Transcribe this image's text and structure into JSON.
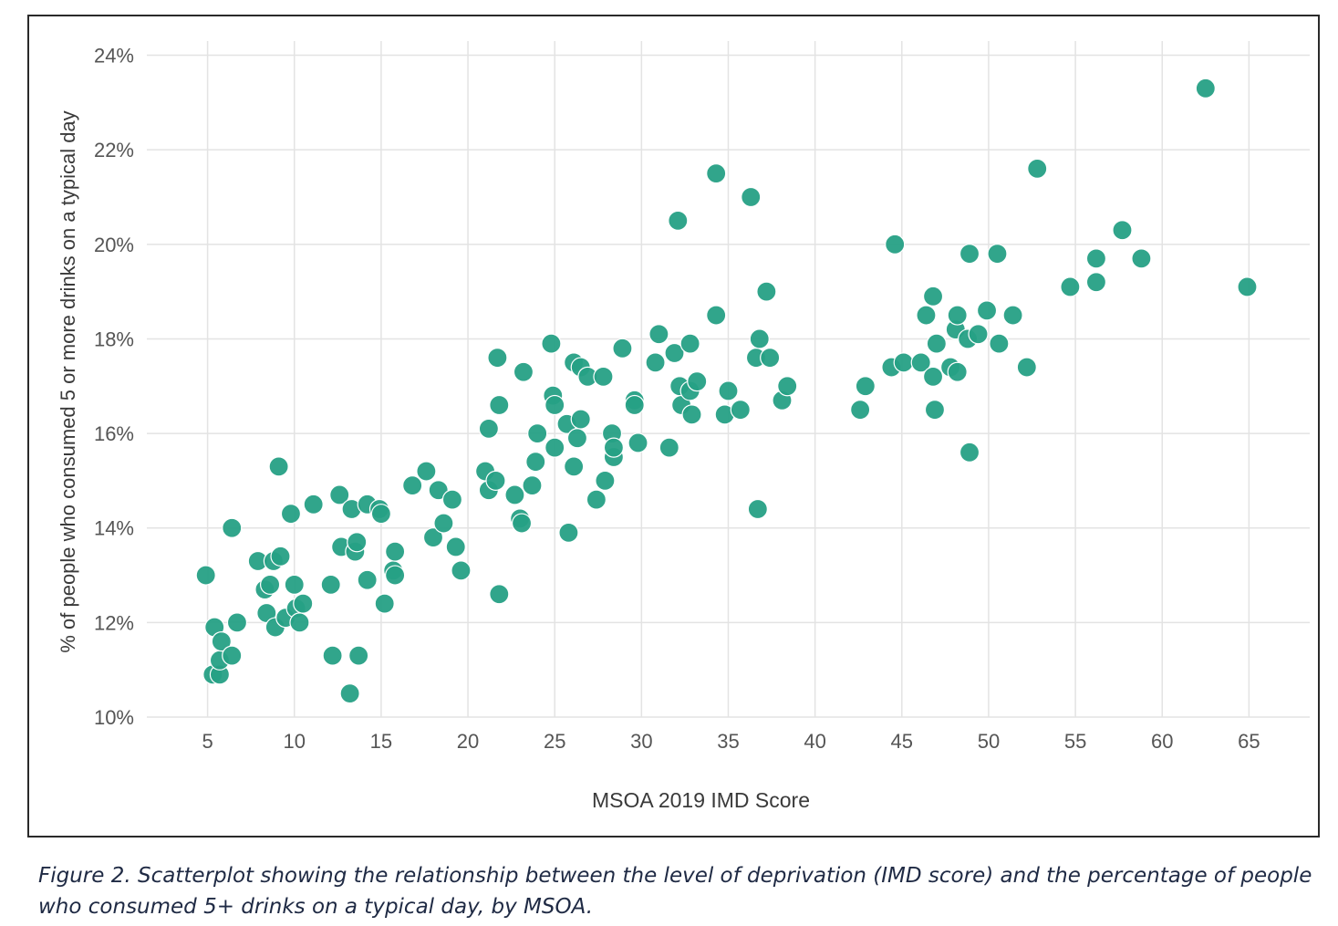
{
  "caption": "Figure 2. Scatterplot showing the relationship between the level of deprivation (IMD score) and the percentage of people who consumed 5+ drinks on a typical day, by MSOA.",
  "chart_data": {
    "type": "scatter",
    "title": "",
    "xlabel": "MSOA 2019 IMD Score",
    "ylabel": "% of people who consumed 5 or more drinks on a typical day",
    "xlim": [
      1.5,
      68.5
    ],
    "ylim": [
      10,
      24.3
    ],
    "x_ticks": [
      5,
      10,
      15,
      20,
      25,
      30,
      35,
      40,
      45,
      50,
      55,
      60,
      65
    ],
    "y_ticks": [
      10,
      12,
      14,
      16,
      18,
      20,
      22,
      24
    ],
    "y_tick_labels": [
      "10%",
      "12%",
      "14%",
      "16%",
      "18%",
      "20%",
      "22%",
      "24%"
    ],
    "grid": true,
    "legend": "none",
    "marker_color": "#26A085",
    "points": [
      {
        "x": 4.9,
        "y": 13.0
      },
      {
        "x": 5.3,
        "y": 10.9
      },
      {
        "x": 5.4,
        "y": 11.9
      },
      {
        "x": 5.7,
        "y": 10.9
      },
      {
        "x": 5.7,
        "y": 11.2
      },
      {
        "x": 5.8,
        "y": 11.6
      },
      {
        "x": 6.4,
        "y": 11.3
      },
      {
        "x": 6.4,
        "y": 14.0
      },
      {
        "x": 6.7,
        "y": 12.0
      },
      {
        "x": 7.9,
        "y": 13.3
      },
      {
        "x": 8.3,
        "y": 12.7
      },
      {
        "x": 8.4,
        "y": 12.2
      },
      {
        "x": 8.6,
        "y": 12.8
      },
      {
        "x": 8.8,
        "y": 13.3
      },
      {
        "x": 8.9,
        "y": 11.9
      },
      {
        "x": 9.1,
        "y": 15.3
      },
      {
        "x": 9.2,
        "y": 13.4
      },
      {
        "x": 9.5,
        "y": 12.1
      },
      {
        "x": 9.8,
        "y": 14.3
      },
      {
        "x": 10.0,
        "y": 12.8
      },
      {
        "x": 10.1,
        "y": 12.3
      },
      {
        "x": 10.3,
        "y": 12.0
      },
      {
        "x": 10.5,
        "y": 12.4
      },
      {
        "x": 11.1,
        "y": 14.5
      },
      {
        "x": 12.1,
        "y": 12.8
      },
      {
        "x": 12.2,
        "y": 11.3
      },
      {
        "x": 12.6,
        "y": 14.7
      },
      {
        "x": 12.7,
        "y": 13.6
      },
      {
        "x": 13.2,
        "y": 10.5
      },
      {
        "x": 13.3,
        "y": 14.4
      },
      {
        "x": 13.5,
        "y": 13.5
      },
      {
        "x": 13.6,
        "y": 13.7
      },
      {
        "x": 13.7,
        "y": 11.3
      },
      {
        "x": 14.2,
        "y": 12.9
      },
      {
        "x": 14.2,
        "y": 14.5
      },
      {
        "x": 14.9,
        "y": 14.4
      },
      {
        "x": 15.0,
        "y": 14.3
      },
      {
        "x": 15.2,
        "y": 12.4
      },
      {
        "x": 15.7,
        "y": 13.1
      },
      {
        "x": 15.8,
        "y": 13.5
      },
      {
        "x": 15.8,
        "y": 13.0
      },
      {
        "x": 16.8,
        "y": 14.9
      },
      {
        "x": 17.6,
        "y": 15.2
      },
      {
        "x": 18.0,
        "y": 13.8
      },
      {
        "x": 18.3,
        "y": 14.8
      },
      {
        "x": 18.6,
        "y": 14.1
      },
      {
        "x": 19.1,
        "y": 14.6
      },
      {
        "x": 19.3,
        "y": 13.6
      },
      {
        "x": 19.6,
        "y": 13.1
      },
      {
        "x": 21.0,
        "y": 15.2
      },
      {
        "x": 21.2,
        "y": 14.8
      },
      {
        "x": 21.2,
        "y": 16.1
      },
      {
        "x": 21.6,
        "y": 15.0
      },
      {
        "x": 21.7,
        "y": 17.6
      },
      {
        "x": 21.8,
        "y": 16.6
      },
      {
        "x": 21.8,
        "y": 12.6
      },
      {
        "x": 22.7,
        "y": 14.7
      },
      {
        "x": 23.0,
        "y": 14.2
      },
      {
        "x": 23.1,
        "y": 14.1
      },
      {
        "x": 23.2,
        "y": 17.3
      },
      {
        "x": 23.7,
        "y": 14.9
      },
      {
        "x": 23.9,
        "y": 15.4
      },
      {
        "x": 24.0,
        "y": 16.0
      },
      {
        "x": 24.8,
        "y": 17.9
      },
      {
        "x": 24.9,
        "y": 16.8
      },
      {
        "x": 25.0,
        "y": 15.7
      },
      {
        "x": 25.0,
        "y": 16.6
      },
      {
        "x": 25.7,
        "y": 16.2
      },
      {
        "x": 25.8,
        "y": 13.9
      },
      {
        "x": 26.1,
        "y": 15.3
      },
      {
        "x": 26.1,
        "y": 17.5
      },
      {
        "x": 26.3,
        "y": 15.9
      },
      {
        "x": 26.5,
        "y": 17.4
      },
      {
        "x": 26.5,
        "y": 16.3
      },
      {
        "x": 26.9,
        "y": 17.2
      },
      {
        "x": 27.4,
        "y": 14.6
      },
      {
        "x": 27.8,
        "y": 17.2
      },
      {
        "x": 27.9,
        "y": 15.0
      },
      {
        "x": 28.3,
        "y": 16.0
      },
      {
        "x": 28.4,
        "y": 15.5
      },
      {
        "x": 28.4,
        "y": 15.7
      },
      {
        "x": 28.9,
        "y": 17.8
      },
      {
        "x": 29.6,
        "y": 16.7
      },
      {
        "x": 29.6,
        "y": 16.6
      },
      {
        "x": 29.8,
        "y": 15.8
      },
      {
        "x": 30.8,
        "y": 17.5
      },
      {
        "x": 31.0,
        "y": 18.1
      },
      {
        "x": 31.6,
        "y": 15.7
      },
      {
        "x": 31.9,
        "y": 17.7
      },
      {
        "x": 32.1,
        "y": 20.5
      },
      {
        "x": 32.2,
        "y": 17.0
      },
      {
        "x": 32.3,
        "y": 16.6
      },
      {
        "x": 32.8,
        "y": 17.9
      },
      {
        "x": 32.8,
        "y": 16.9
      },
      {
        "x": 32.9,
        "y": 16.4
      },
      {
        "x": 33.2,
        "y": 17.1
      },
      {
        "x": 34.3,
        "y": 21.5
      },
      {
        "x": 34.3,
        "y": 18.5
      },
      {
        "x": 34.8,
        "y": 16.4
      },
      {
        "x": 35.0,
        "y": 16.9
      },
      {
        "x": 35.7,
        "y": 16.5
      },
      {
        "x": 36.3,
        "y": 21.0
      },
      {
        "x": 36.6,
        "y": 17.6
      },
      {
        "x": 36.7,
        "y": 14.4
      },
      {
        "x": 36.8,
        "y": 18.0
      },
      {
        "x": 37.2,
        "y": 19.0
      },
      {
        "x": 37.4,
        "y": 17.6
      },
      {
        "x": 38.1,
        "y": 16.7
      },
      {
        "x": 38.4,
        "y": 17.0
      },
      {
        "x": 42.6,
        "y": 16.5
      },
      {
        "x": 42.9,
        "y": 17.0
      },
      {
        "x": 44.4,
        "y": 17.4
      },
      {
        "x": 44.6,
        "y": 20.0
      },
      {
        "x": 45.1,
        "y": 17.5
      },
      {
        "x": 46.1,
        "y": 17.5
      },
      {
        "x": 46.4,
        "y": 18.5
      },
      {
        "x": 46.8,
        "y": 18.9
      },
      {
        "x": 46.8,
        "y": 17.2
      },
      {
        "x": 46.9,
        "y": 16.5
      },
      {
        "x": 47.0,
        "y": 17.9
      },
      {
        "x": 47.8,
        "y": 17.4
      },
      {
        "x": 48.1,
        "y": 18.2
      },
      {
        "x": 48.2,
        "y": 18.5
      },
      {
        "x": 48.2,
        "y": 17.3
      },
      {
        "x": 48.8,
        "y": 18.0
      },
      {
        "x": 48.9,
        "y": 19.8
      },
      {
        "x": 48.9,
        "y": 15.6
      },
      {
        "x": 49.4,
        "y": 18.1
      },
      {
        "x": 49.9,
        "y": 18.6
      },
      {
        "x": 50.5,
        "y": 19.8
      },
      {
        "x": 50.6,
        "y": 17.9
      },
      {
        "x": 51.4,
        "y": 18.5
      },
      {
        "x": 52.2,
        "y": 17.4
      },
      {
        "x": 52.8,
        "y": 21.6
      },
      {
        "x": 54.7,
        "y": 19.1
      },
      {
        "x": 56.2,
        "y": 19.7
      },
      {
        "x": 56.2,
        "y": 19.2
      },
      {
        "x": 57.7,
        "y": 20.3
      },
      {
        "x": 58.8,
        "y": 19.7
      },
      {
        "x": 62.5,
        "y": 23.3
      },
      {
        "x": 64.9,
        "y": 19.1
      }
    ]
  }
}
